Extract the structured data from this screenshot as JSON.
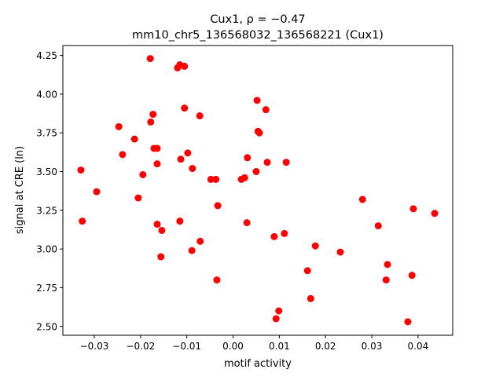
{
  "chart_data": {
    "type": "scatter",
    "title": "Cux1, ρ = −0.47",
    "subtitle": "mm10_chr5_136568032_136568221 (Cux1)",
    "xlabel": "motif activity",
    "ylabel": "signal at CRE (ln)",
    "xlim": [
      -0.0368,
      0.0475
    ],
    "ylim": [
      2.443,
      4.314
    ],
    "xticks": [
      -0.03,
      -0.02,
      -0.01,
      0.0,
      0.01,
      0.02,
      0.03,
      0.04
    ],
    "xtick_labels": [
      "−0.03",
      "−0.02",
      "−0.01",
      "0.00",
      "0.01",
      "0.02",
      "0.03",
      "0.04"
    ],
    "yticks": [
      2.5,
      2.75,
      3.0,
      3.25,
      3.5,
      3.75,
      4.0,
      4.25
    ],
    "ytick_labels": [
      "2.50",
      "2.75",
      "3.00",
      "3.25",
      "3.50",
      "3.75",
      "4.00",
      "4.25"
    ],
    "grid": false,
    "marker_color": "#ff0000",
    "points": [
      [
        -0.0329,
        3.51
      ],
      [
        -0.0326,
        3.18
      ],
      [
        -0.0295,
        3.37
      ],
      [
        -0.0247,
        3.79
      ],
      [
        -0.0239,
        3.61
      ],
      [
        -0.0213,
        3.71
      ],
      [
        -0.0205,
        3.33
      ],
      [
        -0.0195,
        3.48
      ],
      [
        -0.0179,
        4.23
      ],
      [
        -0.0178,
        3.82
      ],
      [
        -0.0173,
        3.87
      ],
      [
        -0.0171,
        3.65
      ],
      [
        -0.0164,
        3.65
      ],
      [
        -0.0164,
        3.55
      ],
      [
        -0.0164,
        3.16
      ],
      [
        -0.0154,
        3.12
      ],
      [
        -0.0156,
        2.95
      ],
      [
        -0.012,
        4.17
      ],
      [
        -0.0115,
        4.19
      ],
      [
        -0.0105,
        4.18
      ],
      [
        -0.0105,
        3.91
      ],
      [
        -0.0113,
        3.58
      ],
      [
        -0.0115,
        3.18
      ],
      [
        -0.0098,
        3.62
      ],
      [
        -0.0088,
        3.52
      ],
      [
        -0.0089,
        2.99
      ],
      [
        -0.0072,
        3.86
      ],
      [
        -0.0071,
        3.05
      ],
      [
        -0.0048,
        3.45
      ],
      [
        -0.0037,
        3.45
      ],
      [
        -0.0033,
        3.28
      ],
      [
        -0.0035,
        2.8
      ],
      [
        0.0018,
        3.45
      ],
      [
        0.0025,
        3.46
      ],
      [
        0.0031,
        3.59
      ],
      [
        0.003,
        3.17
      ],
      [
        0.0052,
        3.96
      ],
      [
        0.0054,
        3.76
      ],
      [
        0.0057,
        3.75
      ],
      [
        0.005,
        3.5
      ],
      [
        0.0071,
        3.9
      ],
      [
        0.0074,
        3.56
      ],
      [
        0.0089,
        3.08
      ],
      [
        0.0093,
        2.55
      ],
      [
        0.0099,
        2.6
      ],
      [
        0.0111,
        3.1
      ],
      [
        0.0115,
        3.56
      ],
      [
        0.0161,
        2.86
      ],
      [
        0.0168,
        2.68
      ],
      [
        0.0178,
        3.02
      ],
      [
        0.0232,
        2.98
      ],
      [
        0.028,
        3.32
      ],
      [
        0.0314,
        3.15
      ],
      [
        0.0334,
        2.9
      ],
      [
        0.0331,
        2.8
      ],
      [
        0.0387,
        2.83
      ],
      [
        0.039,
        3.26
      ],
      [
        0.0378,
        2.53
      ],
      [
        0.0436,
        3.23
      ]
    ]
  }
}
